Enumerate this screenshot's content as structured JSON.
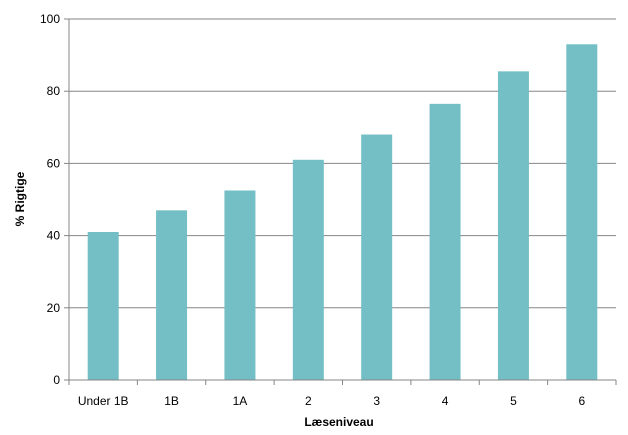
{
  "chart_data": {
    "type": "bar",
    "categories": [
      "Under 1B",
      "1B",
      "1A",
      "2",
      "3",
      "4",
      "5",
      "6"
    ],
    "values": [
      41,
      47,
      52.5,
      61,
      68,
      76.5,
      85.5,
      93
    ],
    "title": "",
    "xlabel": "Læseniveau",
    "ylabel": "% Rigtige",
    "ylim": [
      0,
      100
    ],
    "yticks": [
      0,
      20,
      40,
      60,
      80,
      100
    ],
    "grid": true,
    "legend": "none",
    "colors": {
      "bar": "#74BFC5",
      "grid": "#868686",
      "axis": "#868686"
    }
  }
}
